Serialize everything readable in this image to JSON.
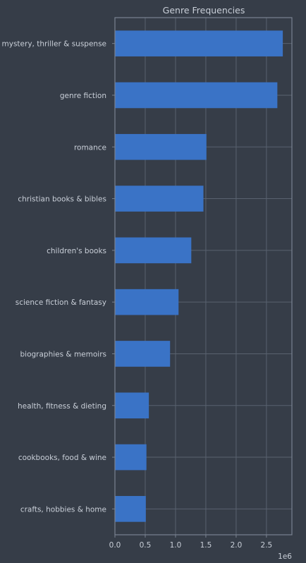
{
  "chart_data": {
    "type": "bar",
    "orientation": "horizontal",
    "title": "Genre Frequencies",
    "xlabel": "",
    "ylabel": "",
    "x_offset_label": "1e6",
    "categories": [
      "mystery, thriller & suspense",
      "genre fiction",
      "romance",
      "christian books & bibles",
      "children's books",
      "science fiction & fantasy",
      "biographies & memoirs",
      "health, fitness & dieting",
      "cookbooks, food & wine",
      "crafts, hobbies & home"
    ],
    "values": [
      2.77,
      2.68,
      1.51,
      1.46,
      1.26,
      1.05,
      0.91,
      0.56,
      0.52,
      0.51
    ],
    "xlim": [
      0,
      2.92
    ],
    "xticks": [
      0.0,
      0.5,
      1.0,
      1.5,
      2.0,
      2.5
    ],
    "xtick_labels": [
      "0.0",
      "0.5",
      "1.0",
      "1.5",
      "2.0",
      "2.5"
    ],
    "grid": true,
    "bar_color": "#3a73c6",
    "background": "#363d48"
  }
}
